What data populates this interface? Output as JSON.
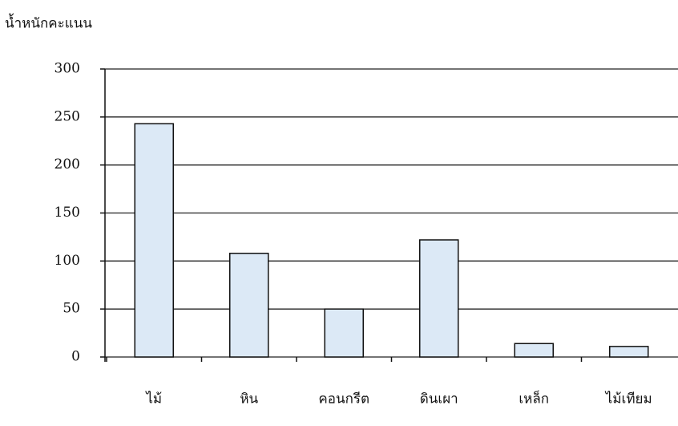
{
  "chart_data": {
    "type": "bar",
    "y_label": "น้ำหนักคะแนน",
    "categories": [
      "ไม้",
      "หิน",
      "คอนกรีต",
      "ดินเผา",
      "เหล็ก",
      "ไม้เทียม"
    ],
    "values": [
      243,
      108,
      50,
      122,
      14,
      11
    ],
    "color": "#dce9f6",
    "ylim": [
      0,
      300
    ],
    "yticks": [
      0,
      50,
      100,
      150,
      200,
      250,
      300
    ],
    "grid": true
  }
}
